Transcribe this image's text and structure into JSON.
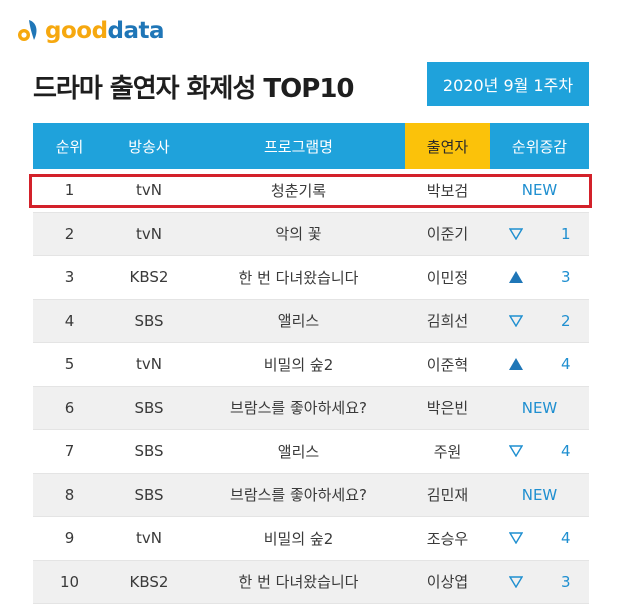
{
  "brand": {
    "good": "good",
    "data": "data"
  },
  "title": "드라마 출연자 화제성 TOP10",
  "date": "2020년 9월 1주차",
  "headers": {
    "rank": "순위",
    "broadcaster": "방송사",
    "program": "프로그램명",
    "cast": "출연자",
    "change": "순위증감"
  },
  "rows": [
    {
      "rank": "1",
      "broadcaster": "tvN",
      "program": "청춘기록",
      "cast": "박보검",
      "change_type": "new",
      "change_label": "NEW",
      "change_value": ""
    },
    {
      "rank": "2",
      "broadcaster": "tvN",
      "program": "악의 꽃",
      "cast": "이준기",
      "change_type": "down",
      "change_label": "",
      "change_value": "1"
    },
    {
      "rank": "3",
      "broadcaster": "KBS2",
      "program": "한 번 다녀왔습니다",
      "cast": "이민정",
      "change_type": "up",
      "change_label": "",
      "change_value": "3"
    },
    {
      "rank": "4",
      "broadcaster": "SBS",
      "program": "앨리스",
      "cast": "김희선",
      "change_type": "down",
      "change_label": "",
      "change_value": "2"
    },
    {
      "rank": "5",
      "broadcaster": "tvN",
      "program": "비밀의 숲2",
      "cast": "이준혁",
      "change_type": "up",
      "change_label": "",
      "change_value": "4"
    },
    {
      "rank": "6",
      "broadcaster": "SBS",
      "program": "브람스를 좋아하세요?",
      "cast": "박은빈",
      "change_type": "new",
      "change_label": "NEW",
      "change_value": ""
    },
    {
      "rank": "7",
      "broadcaster": "SBS",
      "program": "앨리스",
      "cast": "주원",
      "change_type": "down",
      "change_label": "",
      "change_value": "4"
    },
    {
      "rank": "8",
      "broadcaster": "SBS",
      "program": "브람스를 좋아하세요?",
      "cast": "김민재",
      "change_type": "new",
      "change_label": "NEW",
      "change_value": ""
    },
    {
      "rank": "9",
      "broadcaster": "tvN",
      "program": "비밀의 숲2",
      "cast": "조승우",
      "change_type": "down",
      "change_label": "",
      "change_value": "4"
    },
    {
      "rank": "10",
      "broadcaster": "KBS2",
      "program": "한 번 다녀왔습니다",
      "cast": "이상엽",
      "change_type": "down",
      "change_label": "",
      "change_value": "3"
    }
  ],
  "colors": {
    "accent_blue": "#1fa2db",
    "header_gold": "#fbc20a",
    "change_text": "#1f8fd0",
    "highlight": "#d3212a"
  }
}
